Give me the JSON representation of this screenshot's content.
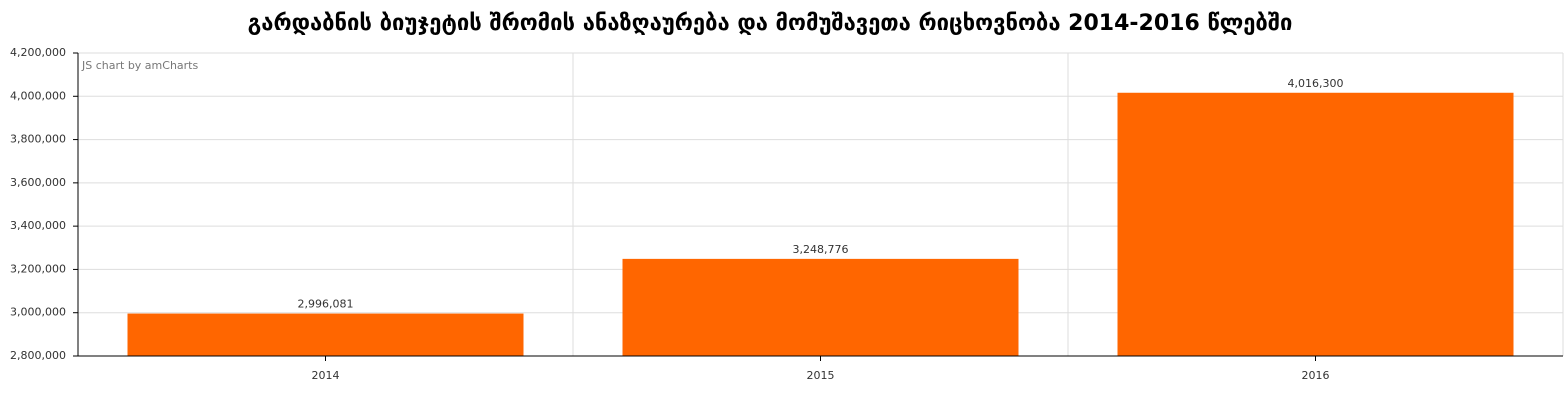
{
  "chart_data": {
    "type": "bar",
    "title": "გარდაბნის ბიუჯეტის შრომის ანაზღაურება და მომუშავეთა რიცხოვნობა 2014-2016 წლებში",
    "credit": "JS chart by amCharts",
    "categories": [
      "2014",
      "2015",
      "2016"
    ],
    "values": [
      2996081,
      3248776,
      4016300
    ],
    "value_labels": [
      "2,996,081",
      "3,248,776",
      "4,016,300"
    ],
    "color": "#ff6600",
    "ylim": [
      2800000,
      4200000
    ],
    "yticks": [
      {
        "value": 2800000,
        "label": "2,800,000"
      },
      {
        "value": 3000000,
        "label": "3,000,000"
      },
      {
        "value": 3200000,
        "label": "3,200,000"
      },
      {
        "value": 3400000,
        "label": "3,400,000"
      },
      {
        "value": 3600000,
        "label": "3,600,000"
      },
      {
        "value": 3800000,
        "label": "3,800,000"
      },
      {
        "value": 4000000,
        "label": "4,000,000"
      },
      {
        "value": 4200000,
        "label": "4,200,000"
      }
    ],
    "grid": true
  }
}
